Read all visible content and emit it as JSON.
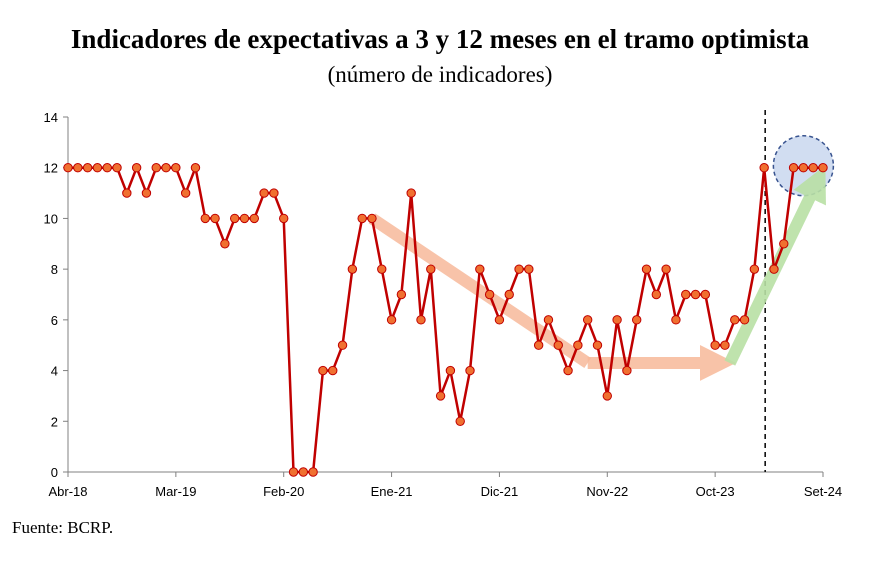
{
  "chart_data": {
    "type": "line",
    "title": "Indicadores de expectativas a 3 y 12 meses en el tramo optimista",
    "subtitle": "(número de indicadores)",
    "source": "Fuente: BCRP.",
    "ylim": [
      0,
      14
    ],
    "y_ticks": [
      "0",
      "2",
      "4",
      "6",
      "8",
      "10",
      "12",
      "14"
    ],
    "x_ticks": [
      {
        "label": "Abr-18",
        "index": 0
      },
      {
        "label": "Mar-19",
        "index": 11
      },
      {
        "label": "Feb-20",
        "index": 22
      },
      {
        "label": "Ene-21",
        "index": 33
      },
      {
        "label": "Dic-21",
        "index": 44
      },
      {
        "label": "Nov-22",
        "index": 55
      },
      {
        "label": "Oct-23",
        "index": 66
      },
      {
        "label": "Set-24",
        "index": 77
      }
    ],
    "vline_index": 71,
    "series": [
      {
        "color": "#c00000",
        "marker_color": "#f07030",
        "values": [
          12,
          12,
          12,
          12,
          12,
          12,
          11,
          12,
          11,
          12,
          12,
          12,
          11,
          12,
          10,
          10,
          9,
          10,
          10,
          10,
          11,
          11,
          10,
          0,
          0,
          0,
          4,
          4,
          5,
          8,
          10,
          10,
          8,
          6,
          7,
          11,
          6,
          8,
          3,
          4,
          2,
          4,
          8,
          7,
          6,
          7,
          8,
          8,
          5,
          6,
          5,
          4,
          5,
          6,
          5,
          3,
          6,
          4,
          6,
          8,
          7,
          8,
          6,
          7,
          7,
          7,
          5,
          5,
          6,
          6,
          8,
          12,
          8,
          9,
          12,
          12,
          12,
          12
        ]
      }
    ],
    "grid": false,
    "legend": "none"
  },
  "colors": {
    "line": "#c00000",
    "marker": "#f07030",
    "arrow_down": "#f7b99a",
    "arrow_up": "#b9e0a5",
    "circle_fill": "#cfdcf1",
    "circle_stroke": "#2e4a8a"
  }
}
